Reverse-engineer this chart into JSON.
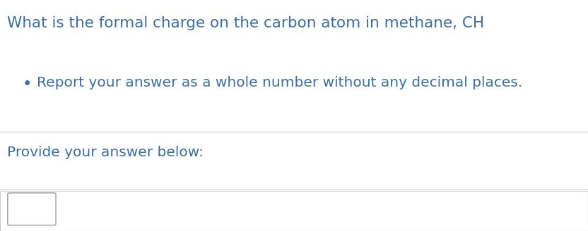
{
  "background_color": "#ffffff",
  "text_color": "#3a6ea5",
  "line_color": "#cccccc",
  "bullet_text": "Report your answer as a whole number without any decimal places.",
  "provide_text": "Provide your answer below:",
  "font_size_question": 15.5,
  "font_size_bullet": 14.5,
  "font_size_provide": 14.5,
  "font_size_subscript": 11
}
